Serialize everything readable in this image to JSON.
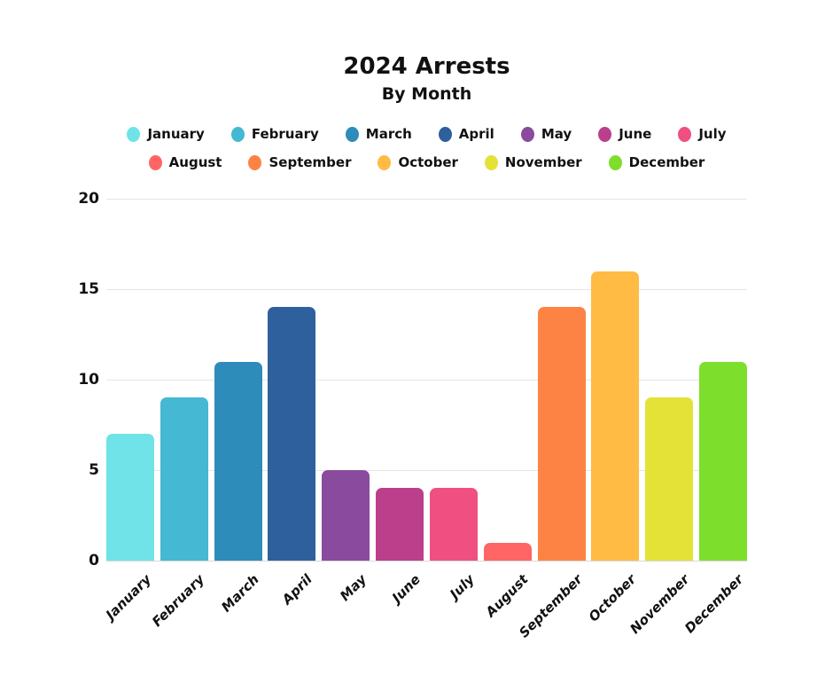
{
  "header": {
    "title": "2024 Arrests",
    "subtitle": "By Month"
  },
  "chart_data": {
    "type": "bar",
    "title": "2024 Arrests",
    "subtitle": "By Month",
    "categories": [
      "January",
      "February",
      "March",
      "April",
      "May",
      "June",
      "July",
      "August",
      "September",
      "October",
      "November",
      "December"
    ],
    "values": [
      7,
      9,
      11,
      14,
      5,
      4,
      4,
      1,
      14,
      16,
      9,
      11
    ],
    "bar_colors": [
      "#6FE3E8",
      "#45B8D3",
      "#2E8CBA",
      "#2F609E",
      "#8A4A9E",
      "#BC3F8C",
      "#F04F82",
      "#FF6565",
      "#FD8345",
      "#FFBB43",
      "#E4E236",
      "#7EDE2C"
    ],
    "xlabel": "",
    "ylabel": "",
    "ylim": [
      0,
      20
    ],
    "yticks": [
      0,
      5,
      10,
      15,
      20
    ],
    "grid": true,
    "legend_position": "top",
    "legend_rows": [
      [
        "January",
        "February",
        "March",
        "April",
        "May",
        "June",
        "July"
      ],
      [
        "August",
        "September",
        "October",
        "November",
        "December"
      ]
    ]
  },
  "colors": {
    "background": "#ffffff",
    "grid": "#e5e5e5",
    "text": "#111111"
  }
}
